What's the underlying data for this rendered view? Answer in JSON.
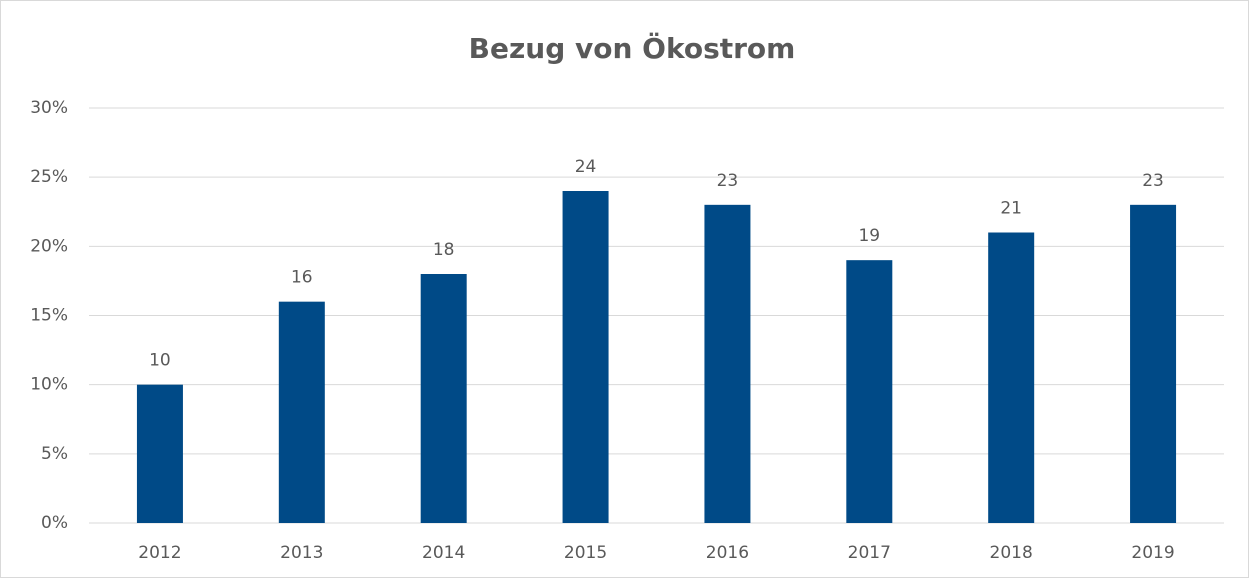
{
  "chart_data": {
    "type": "bar",
    "title": "Bezug von Ökostrom",
    "categories": [
      "2012",
      "2013",
      "2014",
      "2015",
      "2016",
      "2017",
      "2018",
      "2019"
    ],
    "values": [
      10,
      16,
      18,
      24,
      23,
      19,
      21,
      23
    ],
    "color": "#004a87",
    "ylim": [
      0,
      30
    ],
    "yticks": [
      {
        "value": 0,
        "label": "0%"
      },
      {
        "value": 5,
        "label": "5%"
      },
      {
        "value": 10,
        "label": "10%"
      },
      {
        "value": 15,
        "label": "15%"
      },
      {
        "value": 20,
        "label": "20%"
      },
      {
        "value": 25,
        "label": "25%"
      },
      {
        "value": 30,
        "label": "30%"
      }
    ],
    "grid": true
  }
}
